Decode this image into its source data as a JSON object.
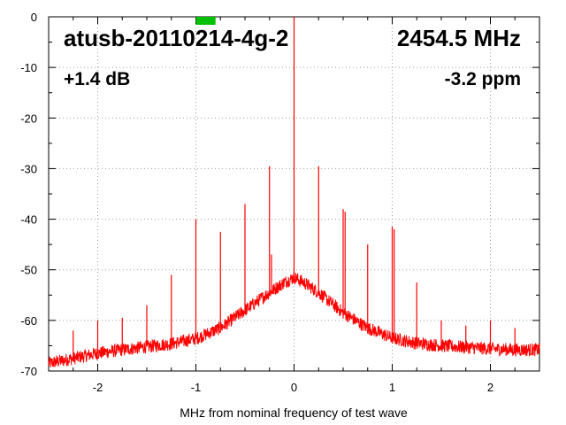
{
  "chart_data": {
    "type": "line",
    "title": "atusb-20110214-4g-2",
    "frequency": "2454.5 MHz",
    "gain_text": "+1.4 dB",
    "ppm_text": "-3.2 ppm",
    "xlabel": "MHz from nominal frequency of test wave",
    "ylabel": "",
    "xlim": [
      -2.5,
      2.5
    ],
    "ylim": [
      -70,
      0
    ],
    "xticks": [
      -2,
      -1,
      0,
      1,
      2
    ],
    "xtick_labels": [
      "-2",
      "-1",
      "0",
      "1",
      "2"
    ],
    "yticks": [
      0,
      -10,
      -20,
      -30,
      -40,
      -50,
      -60,
      -70
    ],
    "ytick_labels": [
      "0",
      "-10",
      "-20",
      "-30",
      "-40",
      "-50",
      "-60",
      "-70"
    ],
    "grid": true,
    "series_color": "#ff0000",
    "marker_color": "#00c000",
    "marker_x_range": [
      -1.0,
      -0.8
    ],
    "noise_floor": [
      [
        -2.5,
        -68.5
      ],
      [
        -2.25,
        -67.5
      ],
      [
        -2.0,
        -66.5
      ],
      [
        -1.75,
        -65.8
      ],
      [
        -1.5,
        -65.2
      ],
      [
        -1.25,
        -64.6
      ],
      [
        -1.0,
        -63.6
      ],
      [
        -0.75,
        -61.5
      ],
      [
        -0.5,
        -58.0
      ],
      [
        -0.25,
        -54.5
      ],
      [
        -0.1,
        -52.5
      ],
      [
        0.0,
        -51.5
      ],
      [
        0.1,
        -52.5
      ],
      [
        0.25,
        -54.5
      ],
      [
        0.5,
        -58.5
      ],
      [
        0.75,
        -61.5
      ],
      [
        1.0,
        -63.5
      ],
      [
        1.25,
        -64.5
      ],
      [
        1.5,
        -65.0
      ],
      [
        1.75,
        -65.3
      ],
      [
        2.0,
        -65.6
      ],
      [
        2.25,
        -65.8
      ],
      [
        2.5,
        -65.8
      ]
    ],
    "spurs": [
      [
        -2.25,
        -62
      ],
      [
        -2.0,
        -60
      ],
      [
        -1.75,
        -59.5
      ],
      [
        -1.5,
        -57
      ],
      [
        -1.25,
        -51
      ],
      [
        -1.0,
        -40
      ],
      [
        -0.75,
        -42.5
      ],
      [
        -0.5,
        -37
      ],
      [
        -0.25,
        -29.5
      ],
      [
        -0.23,
        -47
      ],
      [
        0.0,
        0.0
      ],
      [
        0.25,
        -29.5
      ],
      [
        0.5,
        -38
      ],
      [
        0.52,
        -38.5
      ],
      [
        0.75,
        -45
      ],
      [
        1.0,
        -41.5
      ],
      [
        1.02,
        -42
      ],
      [
        1.25,
        -52.5
      ],
      [
        1.5,
        -60
      ],
      [
        1.75,
        -61
      ],
      [
        2.0,
        -60
      ],
      [
        2.25,
        -61.5
      ]
    ]
  }
}
